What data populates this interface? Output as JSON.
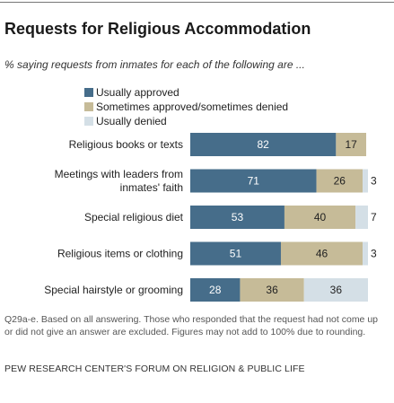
{
  "title": "Requests for Religious Accommodation",
  "subtitle": "% saying requests from inmates for each of the following are ...",
  "note": "Q29a-e. Based on all answering. Those who responded that the request had not come up or did not give an answer are excluded. Figures may not add to 100% due to rounding.",
  "source": "PEW RESEARCH CENTER'S FORUM ON RELIGION & PUBLIC LIFE",
  "colors": {
    "approved": "#466d8a",
    "sometimes": "#c6bb98",
    "denied": "#d4dfe6",
    "approved_text": "#ffffff",
    "other_text": "#222222"
  },
  "chart_data": {
    "type": "bar",
    "orientation": "horizontal",
    "stacked": true,
    "categories": [
      [
        "Religious books or texts"
      ],
      [
        "Meetings with leaders from",
        "inmates' faith"
      ],
      [
        "Special religious diet"
      ],
      [
        "Religious items or clothing"
      ],
      [
        "Special hairstyle or grooming"
      ]
    ],
    "series": [
      {
        "name": "Usually approved",
        "values": [
          82,
          71,
          53,
          51,
          28
        ]
      },
      {
        "name": "Sometimes approved/sometimes denied",
        "values": [
          17,
          26,
          40,
          46,
          36
        ]
      },
      {
        "name": "Usually denied",
        "values": [
          null,
          3,
          7,
          3,
          36
        ]
      }
    ],
    "xlim": [
      0,
      100
    ],
    "legend_position": "top",
    "grid": false
  }
}
